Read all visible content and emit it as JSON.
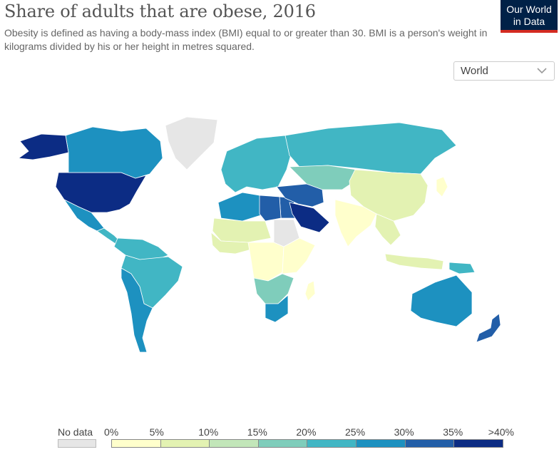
{
  "title": "Share of adults that are obese, 2016",
  "subtitle": "Obesity is defined as having a body-mass index (BMI) equal to or greater than 30. BMI is a person's weight in kilograms divided by his or her height in metres squared.",
  "logo": {
    "line1": "Our World",
    "line2": "in Data",
    "bg": "#002147",
    "accent": "#d42b21"
  },
  "region_selector": {
    "selected": "World",
    "icon": "chevron-down-icon"
  },
  "legend": {
    "nodata_label": "No data",
    "nodata_color": "#e6e6e6",
    "ticks": [
      "0%",
      "5%",
      "10%",
      "15%",
      "20%",
      "25%",
      "30%",
      "35%",
      ">40%"
    ],
    "colors": [
      "#ffffcc",
      "#e3f2b2",
      "#c2e6b9",
      "#7fcdbb",
      "#41b6c4",
      "#1d91c0",
      "#225ea8",
      "#0c2c84"
    ]
  },
  "map_regions": [
    {
      "name": "North America",
      "bin": 7
    },
    {
      "name": "Canada",
      "bin": 5
    },
    {
      "name": "Alaska",
      "bin": 7
    },
    {
      "name": "Greenland",
      "bin": -1
    },
    {
      "name": "Mexico",
      "bin": 5
    },
    {
      "name": "Central America",
      "bin": 4
    },
    {
      "name": "South America North",
      "bin": 4
    },
    {
      "name": "South America Brazil",
      "bin": 4
    },
    {
      "name": "South America South",
      "bin": 5
    },
    {
      "name": "Europe",
      "bin": 4
    },
    {
      "name": "Russia",
      "bin": 4
    },
    {
      "name": "Central Asia",
      "bin": 3
    },
    {
      "name": "North Africa",
      "bin": 5
    },
    {
      "name": "Egypt",
      "bin": 6
    },
    {
      "name": "Libya",
      "bin": 6
    },
    {
      "name": "Middle East",
      "bin": 6
    },
    {
      "name": "Arabian Peninsula",
      "bin": 7
    },
    {
      "name": "Sahara Region",
      "bin": 1
    },
    {
      "name": "Sudan",
      "bin": -1
    },
    {
      "name": "West Africa",
      "bin": 1
    },
    {
      "name": "Central Africa",
      "bin": 0
    },
    {
      "name": "East Africa",
      "bin": 0
    },
    {
      "name": "Southern Africa",
      "bin": 3
    },
    {
      "name": "South Africa",
      "bin": 5
    },
    {
      "name": "Madagascar",
      "bin": 0
    },
    {
      "name": "South Asia",
      "bin": 0
    },
    {
      "name": "China",
      "bin": 1
    },
    {
      "name": "Southeast Asia",
      "bin": 1
    },
    {
      "name": "Indonesia",
      "bin": 1
    },
    {
      "name": "Papua New Guinea",
      "bin": 4
    },
    {
      "name": "Australia",
      "bin": 5
    },
    {
      "name": "New Zealand",
      "bin": 6
    },
    {
      "name": "Japan",
      "bin": 0
    }
  ]
}
